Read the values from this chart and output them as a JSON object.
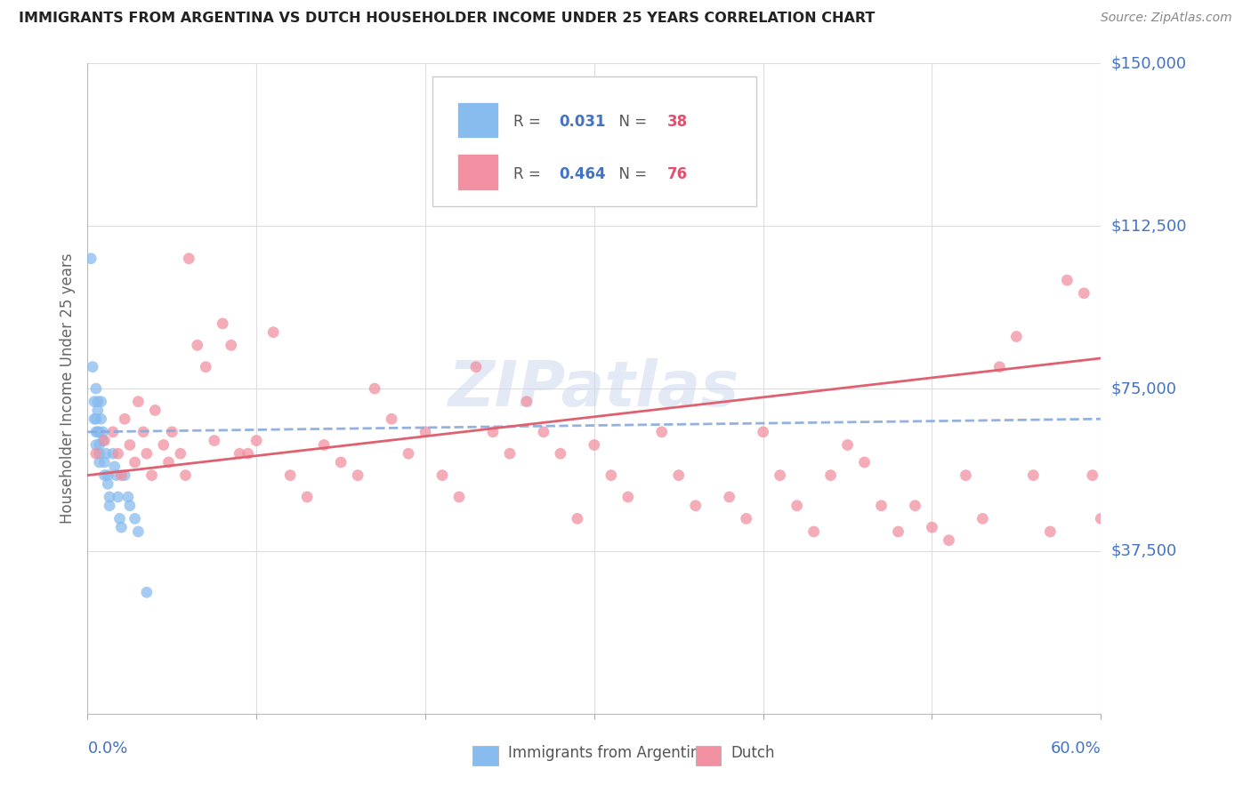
{
  "title": "IMMIGRANTS FROM ARGENTINA VS DUTCH HOUSEHOLDER INCOME UNDER 25 YEARS CORRELATION CHART",
  "source": "Source: ZipAtlas.com",
  "ylabel": "Householder Income Under 25 years",
  "xlim": [
    0.0,
    0.6
  ],
  "ylim": [
    0,
    150000
  ],
  "color_argentina": "#88bbee",
  "color_dutch": "#f090a0",
  "color_trend_argentina": "#88aadd",
  "color_trend_dutch": "#e06070",
  "color_labels": "#4472C4",
  "color_title": "#222222",
  "color_source": "#888888",
  "color_ylabel": "#666666",
  "watermark_text": "ZIPatlas",
  "watermark_color": "#ccd8ee",
  "legend_R1": "0.031",
  "legend_N1": "38",
  "legend_R2": "0.464",
  "legend_N2": "76",
  "argentina_x": [
    0.002,
    0.003,
    0.004,
    0.004,
    0.005,
    0.005,
    0.005,
    0.005,
    0.006,
    0.006,
    0.006,
    0.007,
    0.007,
    0.007,
    0.007,
    0.008,
    0.008,
    0.009,
    0.009,
    0.01,
    0.01,
    0.011,
    0.012,
    0.012,
    0.013,
    0.013,
    0.015,
    0.016,
    0.017,
    0.018,
    0.019,
    0.02,
    0.022,
    0.024,
    0.025,
    0.028,
    0.03,
    0.035
  ],
  "argentina_y": [
    105000,
    80000,
    72000,
    68000,
    75000,
    65000,
    68000,
    62000,
    72000,
    70000,
    65000,
    65000,
    62000,
    60000,
    58000,
    72000,
    68000,
    65000,
    63000,
    58000,
    55000,
    60000,
    55000,
    53000,
    50000,
    48000,
    60000,
    57000,
    55000,
    50000,
    45000,
    43000,
    55000,
    50000,
    48000,
    45000,
    42000,
    28000
  ],
  "dutch_x": [
    0.005,
    0.01,
    0.015,
    0.018,
    0.02,
    0.022,
    0.025,
    0.028,
    0.03,
    0.033,
    0.035,
    0.038,
    0.04,
    0.045,
    0.048,
    0.05,
    0.055,
    0.058,
    0.06,
    0.065,
    0.07,
    0.075,
    0.08,
    0.085,
    0.09,
    0.095,
    0.1,
    0.11,
    0.12,
    0.13,
    0.14,
    0.15,
    0.16,
    0.17,
    0.18,
    0.19,
    0.2,
    0.21,
    0.22,
    0.23,
    0.24,
    0.25,
    0.26,
    0.27,
    0.28,
    0.29,
    0.3,
    0.31,
    0.32,
    0.34,
    0.35,
    0.36,
    0.38,
    0.39,
    0.4,
    0.41,
    0.42,
    0.43,
    0.44,
    0.45,
    0.46,
    0.47,
    0.48,
    0.49,
    0.5,
    0.51,
    0.52,
    0.53,
    0.54,
    0.55,
    0.56,
    0.57,
    0.58,
    0.59,
    0.595,
    0.6
  ],
  "dutch_y": [
    60000,
    63000,
    65000,
    60000,
    55000,
    68000,
    62000,
    58000,
    72000,
    65000,
    60000,
    55000,
    70000,
    62000,
    58000,
    65000,
    60000,
    55000,
    105000,
    85000,
    80000,
    63000,
    90000,
    85000,
    60000,
    60000,
    63000,
    88000,
    55000,
    50000,
    62000,
    58000,
    55000,
    75000,
    68000,
    60000,
    65000,
    55000,
    50000,
    80000,
    65000,
    60000,
    72000,
    65000,
    60000,
    45000,
    62000,
    55000,
    50000,
    65000,
    55000,
    48000,
    50000,
    45000,
    65000,
    55000,
    48000,
    42000,
    55000,
    62000,
    58000,
    48000,
    42000,
    48000,
    43000,
    40000,
    55000,
    45000,
    80000,
    87000,
    55000,
    42000,
    100000,
    97000,
    55000,
    45000
  ]
}
